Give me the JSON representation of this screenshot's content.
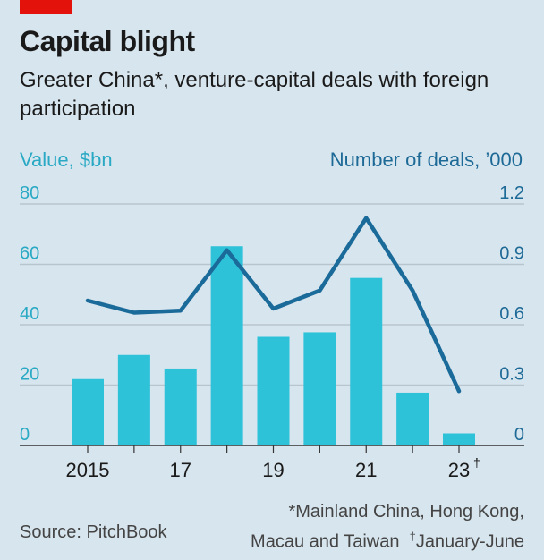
{
  "header": {
    "title": "Capital blight",
    "subtitle": "Greater China*, venture-capital deals with foreign participation"
  },
  "colors": {
    "background": "#d7e5ee",
    "bars": "#2ec2d9",
    "line": "#1a6a9a",
    "left_axis_text": "#29a9c4",
    "right_axis_text": "#1e6a97",
    "gridline": "#b8c5ce",
    "accent_red": "#e3120b"
  },
  "chart_data": {
    "type": "bar",
    "x": [
      2015,
      2016,
      2017,
      2018,
      2019,
      2020,
      2021,
      2022,
      2023
    ],
    "x_tick_labels": [
      "2015",
      "17",
      "19",
      "21",
      "23"
    ],
    "x_tick_positions": [
      2015,
      2017,
      2019,
      2021,
      2023
    ],
    "x_tick_suffix": "†",
    "left_axis": {
      "label": "Value, $bn",
      "ylim": [
        0,
        80
      ],
      "ticks": [
        "0",
        "20",
        "40",
        "60",
        "80"
      ]
    },
    "right_axis": {
      "label": "Number of deals, ’000",
      "ylim": [
        0,
        1.2
      ],
      "ticks": [
        "0",
        "0.3",
        "0.6",
        "0.9",
        "1.2"
      ]
    },
    "series": [
      {
        "type": "bar",
        "axis": "left",
        "values": [
          22,
          30,
          25.5,
          66,
          36,
          37.5,
          55.5,
          17.5,
          4
        ]
      },
      {
        "type": "line",
        "axis": "right",
        "values": [
          0.72,
          0.66,
          0.67,
          0.97,
          0.68,
          0.77,
          1.13,
          0.77,
          0.27
        ]
      }
    ],
    "grid": true
  },
  "footer": {
    "source": "Source: PitchBook",
    "footnote_line1": "*Mainland China, Hong Kong,",
    "footnote_line2": "Macau and Taiwan",
    "footnote_dagger": "†",
    "footnote_partial": "January-June"
  }
}
